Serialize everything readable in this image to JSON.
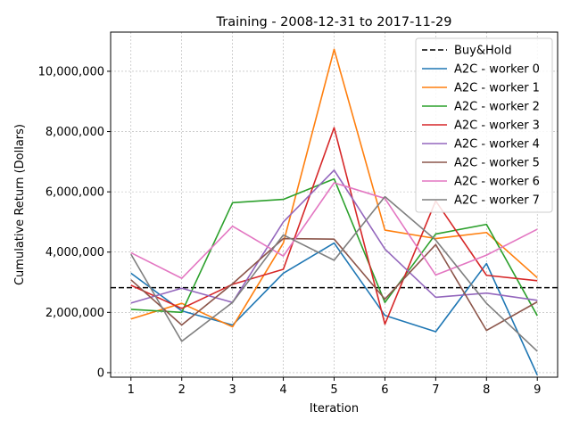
{
  "chart_data": {
    "type": "line",
    "title": "Training - 2008-12-31 to 2017-11-29",
    "xlabel": "Iteration",
    "ylabel": "Cumulative Return (Dollars)",
    "x": [
      1,
      2,
      3,
      4,
      5,
      6,
      7,
      8,
      9
    ],
    "x_tick_labels": [
      "1",
      "2",
      "3",
      "4",
      "5",
      "6",
      "7",
      "8",
      "9"
    ],
    "xlim": [
      0.6,
      9.4
    ],
    "ylim": [
      -150000,
      11300000
    ],
    "y_ticks": [
      0,
      2000000,
      4000000,
      6000000,
      8000000,
      10000000
    ],
    "y_tick_labels": [
      "0",
      "2,000,000",
      "4,000,000",
      "6,000,000",
      "8,000,000",
      "10,000,000"
    ],
    "grid": true,
    "legend_position": "top-right",
    "baseline": {
      "name": "Buy&Hold",
      "value": 2820000,
      "color": "#000000",
      "style": "dashed"
    },
    "series": [
      {
        "name": "A2C - worker 0",
        "color": "#1f77b4",
        "values": [
          3300000,
          2050000,
          1580000,
          3300000,
          4300000,
          1900000,
          1360000,
          3620000,
          -80000
        ]
      },
      {
        "name": "A2C - worker 1",
        "color": "#ff7f0e",
        "values": [
          1780000,
          2300000,
          1520000,
          4300000,
          10730000,
          4730000,
          4450000,
          4650000,
          3150000
        ]
      },
      {
        "name": "A2C - worker 2",
        "color": "#2ca02c",
        "values": [
          2100000,
          2000000,
          5640000,
          5750000,
          6430000,
          2330000,
          4600000,
          4920000,
          1890000
        ]
      },
      {
        "name": "A2C - worker 3",
        "color": "#d62728",
        "values": [
          2900000,
          2130000,
          2930000,
          3430000,
          8130000,
          1610000,
          5700000,
          3230000,
          3050000
        ]
      },
      {
        "name": "A2C - worker 4",
        "color": "#9467bd",
        "values": [
          2310000,
          2800000,
          2330000,
          5000000,
          6720000,
          4100000,
          2500000,
          2640000,
          2400000
        ]
      },
      {
        "name": "A2C - worker 5",
        "color": "#8c564b",
        "values": [
          3080000,
          1580000,
          2950000,
          4450000,
          4430000,
          2440000,
          4250000,
          1400000,
          2350000
        ]
      },
      {
        "name": "A2C - worker 6",
        "color": "#e377c2",
        "values": [
          3980000,
          3130000,
          4860000,
          3870000,
          6300000,
          5780000,
          3240000,
          3900000,
          4760000
        ]
      },
      {
        "name": "A2C - worker 7",
        "color": "#7f7f7f",
        "values": [
          3930000,
          1040000,
          2330000,
          4570000,
          3730000,
          5840000,
          4400000,
          2300000,
          710000
        ]
      }
    ]
  }
}
